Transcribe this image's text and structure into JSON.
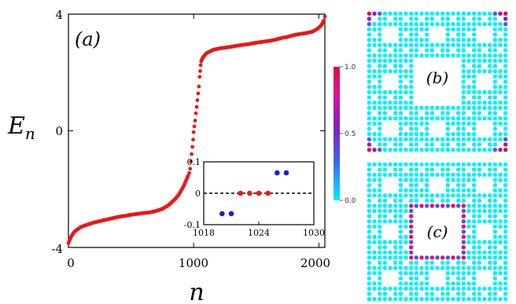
{
  "chart_data": [
    {
      "type": "scatter",
      "panel_label": "(a)",
      "xlabel": "n",
      "ylabel": "E",
      "ylabel_subscript": "n",
      "xlim": [
        0,
        2048
      ],
      "ylim": [
        -4,
        4
      ],
      "x_ticks": [
        "0",
        "1000",
        "2000"
      ],
      "y_ticks": [
        "-4",
        "0",
        "4"
      ],
      "series": [
        {
          "color": "#e8191b",
          "x": [
            0,
            25,
            50,
            100,
            150,
            200,
            250,
            300,
            350,
            400,
            450,
            500,
            550,
            600,
            650,
            700,
            750,
            800,
            850,
            880,
            900,
            920,
            940,
            955,
            965,
            972,
            978,
            984,
            990,
            996,
            1000,
            1006,
            1012,
            1018,
            1024,
            1030,
            1036,
            1042,
            1048,
            1052,
            1056,
            1060,
            1070,
            1080,
            1100,
            1130,
            1160,
            1200,
            1250,
            1300,
            1350,
            1400,
            1450,
            1500,
            1550,
            1600,
            1650,
            1700,
            1750,
            1800,
            1850,
            1900,
            1950,
            1990,
            2020,
            2040,
            2048
          ],
          "y": [
            -3.85,
            -3.6,
            -3.45,
            -3.3,
            -3.22,
            -3.15,
            -3.1,
            -3.05,
            -3.0,
            -2.95,
            -2.92,
            -2.88,
            -2.85,
            -2.82,
            -2.8,
            -2.75,
            -2.68,
            -2.55,
            -2.35,
            -2.2,
            -2.05,
            -1.9,
            -1.7,
            -1.55,
            -1.45,
            -1.3,
            -1.05,
            -0.8,
            -0.55,
            -0.3,
            -0.05,
            0.15,
            0.35,
            0.6,
            0.82,
            1.05,
            1.28,
            1.52,
            1.85,
            2.05,
            2.25,
            2.38,
            2.48,
            2.55,
            2.65,
            2.72,
            2.78,
            2.82,
            2.85,
            2.88,
            2.92,
            2.95,
            2.98,
            3.02,
            3.05,
            3.08,
            3.12,
            3.18,
            3.22,
            3.28,
            3.32,
            3.35,
            3.4,
            3.5,
            3.62,
            3.78,
            3.92
          ]
        }
      ]
    },
    {
      "type": "scatter",
      "subtype": "inset",
      "xlim": [
        1018,
        1030
      ],
      "ylim": [
        -0.1,
        0.1
      ],
      "x_ticks": [
        "1018",
        "1024",
        "1030"
      ],
      "y_ticks": [
        "0.1",
        "0",
        "-0.1"
      ],
      "series": [
        {
          "color": "#1a1adb",
          "x": [
            1020,
            1021,
            1026,
            1027
          ],
          "y": [
            -0.065,
            -0.065,
            0.065,
            0.065
          ]
        },
        {
          "color": "#e8191b",
          "x": [
            1022,
            1023,
            1024,
            1025
          ],
          "y": [
            0,
            0,
            0,
            0
          ]
        }
      ],
      "reference_line": {
        "y": 0,
        "style": "dashed",
        "color": "#000000"
      }
    },
    {
      "type": "heatmap",
      "panel_label": "(b)",
      "description_pattern": "Sierpinski carpet lattice, weight concentrated on outer corner sites"
    },
    {
      "type": "heatmap",
      "panel_label": "(c)",
      "description_pattern": "Sierpinski carpet lattice, weight concentrated on edge of central hole"
    }
  ],
  "colorbar": {
    "min": 0.0,
    "max": 1.0,
    "ticks": [
      "1.0",
      "0.5",
      "0.0"
    ],
    "colors": [
      "#00f0ff",
      "#4060f0",
      "#8020c0",
      "#e01090",
      "#d81040"
    ]
  }
}
